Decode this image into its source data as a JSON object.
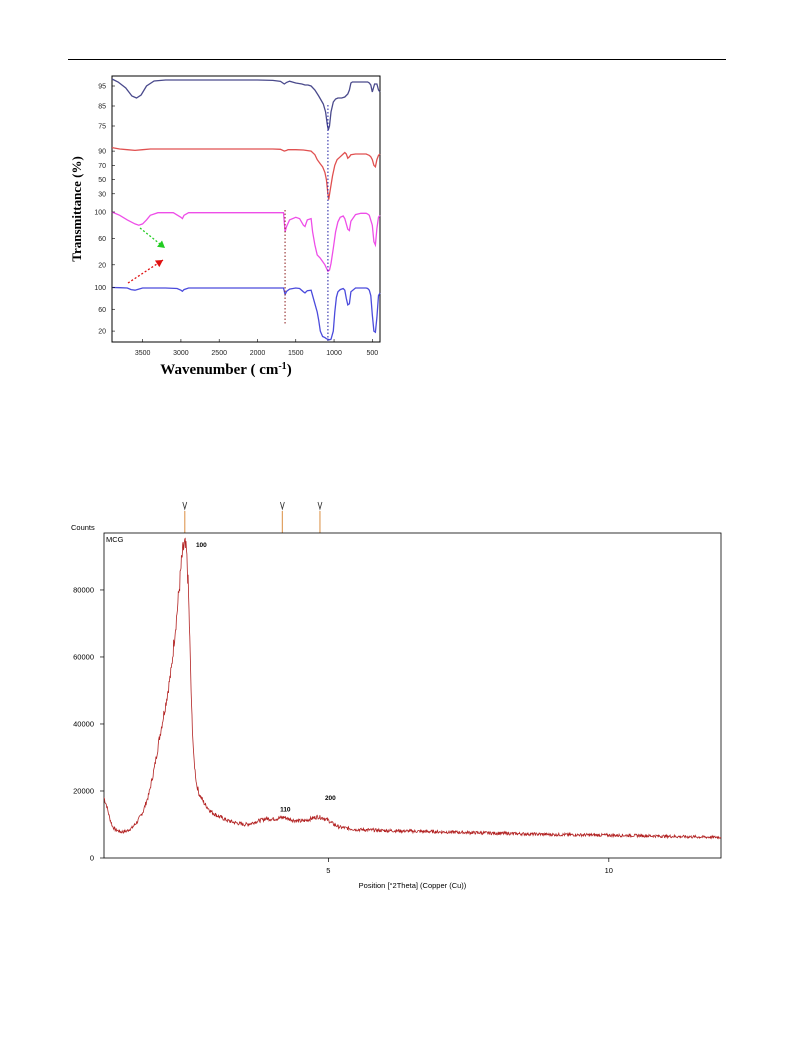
{
  "chart_data": [
    {
      "type": "line",
      "title": "",
      "xlabel": "Wavenumber ( cm-1)",
      "xlabel_main": "Wavenumber ( cm",
      "xlabel_sup": "-1",
      "xlabel_end": ")",
      "ylabel": "Transmittance (%)",
      "x_reversed": true,
      "xlim": [
        3900,
        400
      ],
      "xticks": [
        3500,
        3000,
        2500,
        2000,
        1500,
        1000,
        500
      ],
      "xtick_labels": [
        "3500",
        "3000",
        "2500",
        "2000",
        "1500",
        "1000",
        "500"
      ],
      "grid": false,
      "annotations": [
        {
          "kind": "dotted-line",
          "x": 1640,
          "color": "#8b1a1a"
        },
        {
          "kind": "dotted-line",
          "x": 1080,
          "color": "#1a1aa0"
        },
        {
          "kind": "arrow",
          "direction": "down-right",
          "color": "#22cc22"
        },
        {
          "kind": "arrow",
          "direction": "up-right",
          "color": "#e01010"
        }
      ],
      "series": [
        {
          "color": "#4a4a8c",
          "ylim": [
            68,
            99
          ],
          "ytick_labels": [
            "95",
            "85",
            "75"
          ],
          "yticks": [
            95,
            85,
            75
          ],
          "x": [
            3900,
            3820,
            3720,
            3640,
            3580,
            3520,
            3450,
            3350,
            3200,
            3100,
            3000,
            2800,
            2500,
            2000,
            1800,
            1700,
            1650,
            1620,
            1580,
            1500,
            1420,
            1380,
            1340,
            1300,
            1250,
            1200,
            1170,
            1140,
            1110,
            1090,
            1075,
            1060,
            1040,
            1010,
            980,
            950,
            900,
            860,
            820,
            800,
            780,
            760,
            720,
            650,
            600,
            560,
            540,
            520,
            500,
            470,
            440,
            420,
            400
          ],
          "y": [
            98.5,
            97,
            94,
            90,
            89,
            90.5,
            95,
            97.5,
            98,
            98,
            98,
            98,
            98,
            98,
            97.8,
            97.3,
            96,
            96.8,
            97.4,
            96.5,
            96,
            95.5,
            95.5,
            95,
            93,
            90,
            88,
            86,
            82,
            76,
            73,
            75,
            82,
            87,
            88.5,
            89,
            89,
            89.5,
            91,
            93,
            96.5,
            97,
            97,
            97,
            97,
            97,
            96.5,
            95.5,
            92,
            96,
            96,
            93,
            92
          ]
        },
        {
          "color": "#e05050",
          "ylim": [
            10,
            100
          ],
          "ytick_labels": [
            "90",
            "70",
            "50",
            "30"
          ],
          "yticks": [
            90,
            70,
            50,
            30
          ],
          "x": [
            3900,
            3800,
            3700,
            3600,
            3500,
            3400,
            3200,
            3000,
            2500,
            2000,
            1800,
            1700,
            1650,
            1620,
            1600,
            1500,
            1400,
            1300,
            1250,
            1220,
            1180,
            1150,
            1120,
            1100,
            1080,
            1070,
            1050,
            1020,
            990,
            960,
            920,
            880,
            860,
            840,
            820,
            800,
            780,
            720,
            650,
            580,
            560,
            540,
            520,
            500,
            480,
            460,
            440,
            420,
            400
          ],
          "y": [
            95,
            93,
            92,
            91,
            92,
            93,
            93,
            93,
            93,
            93,
            93,
            92.5,
            90,
            91,
            92,
            92,
            91.5,
            90,
            85,
            78,
            72,
            68,
            60,
            50,
            30,
            22,
            35,
            55,
            70,
            78,
            82,
            86,
            88,
            86,
            80,
            82,
            85,
            86,
            86,
            86,
            85,
            84,
            82,
            78,
            70,
            68,
            78,
            84,
            86
          ]
        },
        {
          "color": "#ee4ee8",
          "ylim": [
            0,
            100
          ],
          "ytick_labels": [
            "100",
            "60",
            "20"
          ],
          "yticks": [
            100,
            60,
            20
          ],
          "x": [
            3900,
            3800,
            3700,
            3600,
            3550,
            3500,
            3450,
            3400,
            3300,
            3100,
            3000,
            2980,
            2960,
            2900,
            2500,
            2000,
            1700,
            1660,
            1640,
            1620,
            1580,
            1500,
            1450,
            1400,
            1380,
            1350,
            1300,
            1280,
            1250,
            1220,
            1180,
            1150,
            1120,
            1100,
            1080,
            1060,
            1040,
            1010,
            980,
            950,
            920,
            880,
            860,
            840,
            820,
            800,
            780,
            720,
            650,
            580,
            560,
            540,
            500,
            480,
            460,
            440,
            420,
            400
          ],
          "y": [
            100,
            95,
            88,
            82,
            80,
            82,
            88,
            95,
            99,
            99,
            92,
            90,
            95,
            99,
            99,
            99,
            99,
            99,
            70,
            78,
            88,
            92,
            90,
            80,
            78,
            88,
            90,
            70,
            50,
            35,
            30,
            25,
            20,
            15,
            10,
            12,
            22,
            45,
            70,
            85,
            92,
            94,
            90,
            82,
            74,
            72,
            86,
            96,
            98,
            98,
            97,
            95,
            80,
            55,
            50,
            75,
            92,
            95
          ]
        },
        {
          "color": "#4b4bdc",
          "ylim": [
            0,
            110
          ],
          "ytick_labels": [
            "100",
            "60",
            "20"
          ],
          "yticks": [
            100,
            60,
            20
          ],
          "x": [
            3900,
            3800,
            3700,
            3650,
            3600,
            3550,
            3500,
            3400,
            3200,
            3050,
            3000,
            2980,
            2960,
            2900,
            2500,
            2000,
            1700,
            1660,
            1640,
            1620,
            1580,
            1500,
            1450,
            1400,
            1380,
            1350,
            1300,
            1280,
            1250,
            1220,
            1200,
            1180,
            1150,
            1120,
            1100,
            1080,
            1060,
            1040,
            1010,
            990,
            970,
            950,
            920,
            880,
            860,
            840,
            820,
            800,
            780,
            720,
            650,
            580,
            560,
            540,
            520,
            500,
            480,
            460,
            440,
            420,
            400
          ],
          "y": [
            100,
            99.5,
            99,
            96,
            95,
            97,
            99,
            99,
            99,
            98,
            95,
            93,
            96,
            99,
            99,
            99,
            99,
            99,
            87,
            93,
            97,
            99,
            98,
            92,
            90,
            94,
            95,
            85,
            70,
            55,
            40,
            20,
            10,
            8,
            6,
            5,
            4,
            5,
            20,
            55,
            82,
            92,
            96,
            98,
            95,
            80,
            68,
            70,
            92,
            99,
            99,
            99,
            98,
            95,
            85,
            50,
            20,
            18,
            45,
            85,
            90
          ]
        }
      ]
    },
    {
      "type": "line",
      "title": "MCG",
      "ylabel": "Counts",
      "xlabel": "Position [°2Theta] (Copper (Cu))",
      "xlim": [
        1,
        12
      ],
      "ylim": [
        0,
        97000
      ],
      "xticks": [
        5,
        10
      ],
      "xtick_labels": [
        "5",
        "10"
      ],
      "yticks": [
        0,
        20000,
        40000,
        60000,
        80000
      ],
      "ytick_labels": [
        "0",
        "20000",
        "40000",
        "60000",
        "80000"
      ],
      "grid": false,
      "reference_markers": [
        2.44,
        4.18,
        4.85
      ],
      "marker_color": "#e0a060",
      "peak_labels": [
        {
          "label": "100",
          "x": 2.55,
          "y": 94000
        },
        {
          "label": "110",
          "x": 4.05,
          "y": 15000
        },
        {
          "label": "200",
          "x": 4.85,
          "y": 18500
        }
      ],
      "series": [
        {
          "color": "#b22222",
          "x": [
            1.0,
            1.05,
            1.1,
            1.15,
            1.2,
            1.3,
            1.4,
            1.5,
            1.6,
            1.7,
            1.8,
            1.9,
            2.0,
            2.1,
            2.2,
            2.25,
            2.3,
            2.35,
            2.38,
            2.41,
            2.44,
            2.47,
            2.5,
            2.53,
            2.56,
            2.6,
            2.65,
            2.7,
            2.8,
            2.9,
            3.0,
            3.1,
            3.2,
            3.3,
            3.4,
            3.5,
            3.6,
            3.7,
            3.8,
            3.9,
            4.0,
            4.1,
            4.2,
            4.3,
            4.4,
            4.5,
            4.6,
            4.7,
            4.8,
            4.9,
            5.0,
            5.1,
            5.2,
            5.5,
            6.0,
            6.5,
            7.0,
            7.5,
            8.0,
            8.5,
            9.0,
            9.5,
            10.0,
            10.5,
            11.0,
            11.5,
            12.0
          ],
          "y": [
            18000,
            15500,
            12000,
            9500,
            8500,
            7800,
            8000,
            9000,
            11000,
            14000,
            19000,
            27000,
            37000,
            46000,
            56000,
            65000,
            73000,
            82000,
            88000,
            92000,
            93500,
            91000,
            82000,
            65000,
            45000,
            30000,
            22000,
            19000,
            16000,
            14000,
            12800,
            12000,
            11200,
            10700,
            10300,
            10000,
            10200,
            10800,
            11300,
            11800,
            11600,
            11800,
            12200,
            11600,
            11200,
            11000,
            11200,
            11800,
            12300,
            12000,
            11200,
            10000,
            9200,
            8500,
            8200,
            8000,
            7800,
            7600,
            7400,
            7200,
            7000,
            6900,
            6800,
            6700,
            6500,
            6300,
            6200
          ]
        }
      ]
    }
  ]
}
